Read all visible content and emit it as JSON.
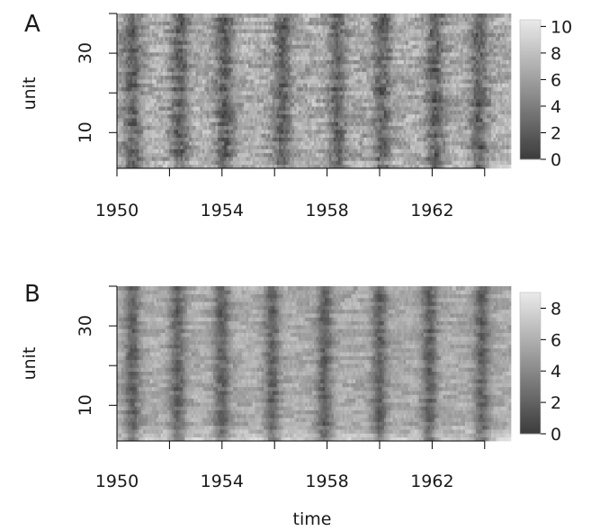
{
  "chart_data": [
    {
      "type": "heatmap",
      "panel_label": "A",
      "xlabel": "",
      "ylabel": "unit",
      "x_ticks": [
        "1950",
        "1954",
        "1958",
        "1962"
      ],
      "xlim": [
        1950,
        1965
      ],
      "x_minor_tick_years": [
        1950,
        1952,
        1954,
        1956,
        1958,
        1960,
        1962,
        1964
      ],
      "y_ticks": [
        "10",
        "30"
      ],
      "ylim": [
        1,
        40
      ],
      "y_minor_ticks": [
        10,
        20,
        30,
        40
      ],
      "colorbar": {
        "ticks": [
          "0",
          "2",
          "4",
          "6",
          "8",
          "10"
        ],
        "min": 0,
        "max": 10.5,
        "low_color": "#3c3c3c",
        "high_color": "#e8e8e8"
      },
      "n_units": 40,
      "n_times": 180,
      "seasonal_trough_years": [
        1950.6,
        1952.4,
        1954.1,
        1956.3,
        1958.4,
        1960.1,
        1962.1,
        1963.8
      ],
      "description_of_values": "Dense panel: units vs monthly time, intensity 0 to ~10, with recurring darker bands roughly every 2 years"
    },
    {
      "type": "heatmap",
      "panel_label": "B",
      "xlabel": "time",
      "ylabel": "unit",
      "x_ticks": [
        "1950",
        "1954",
        "1958",
        "1962"
      ],
      "xlim": [
        1950,
        1965
      ],
      "x_minor_tick_years": [
        1950,
        1952,
        1954,
        1956,
        1958,
        1960,
        1962,
        1964
      ],
      "y_ticks": [
        "10",
        "30"
      ],
      "ylim": [
        1,
        40
      ],
      "y_minor_ticks": [
        10,
        20,
        30,
        40
      ],
      "colorbar": {
        "ticks": [
          "0",
          "2",
          "4",
          "6",
          "8"
        ],
        "min": 0,
        "max": 9,
        "low_color": "#3c3c3c",
        "high_color": "#e8e8e8"
      },
      "n_units": 40,
      "n_times": 180,
      "seasonal_trough_years": [
        1950.6,
        1952.3,
        1954.0,
        1955.9,
        1957.9,
        1960.0,
        1961.9,
        1963.9
      ],
      "description_of_values": "Smoothed panel: clearer vertical dark bands at roughly 2-year intervals, lighter near low unit numbers"
    }
  ]
}
